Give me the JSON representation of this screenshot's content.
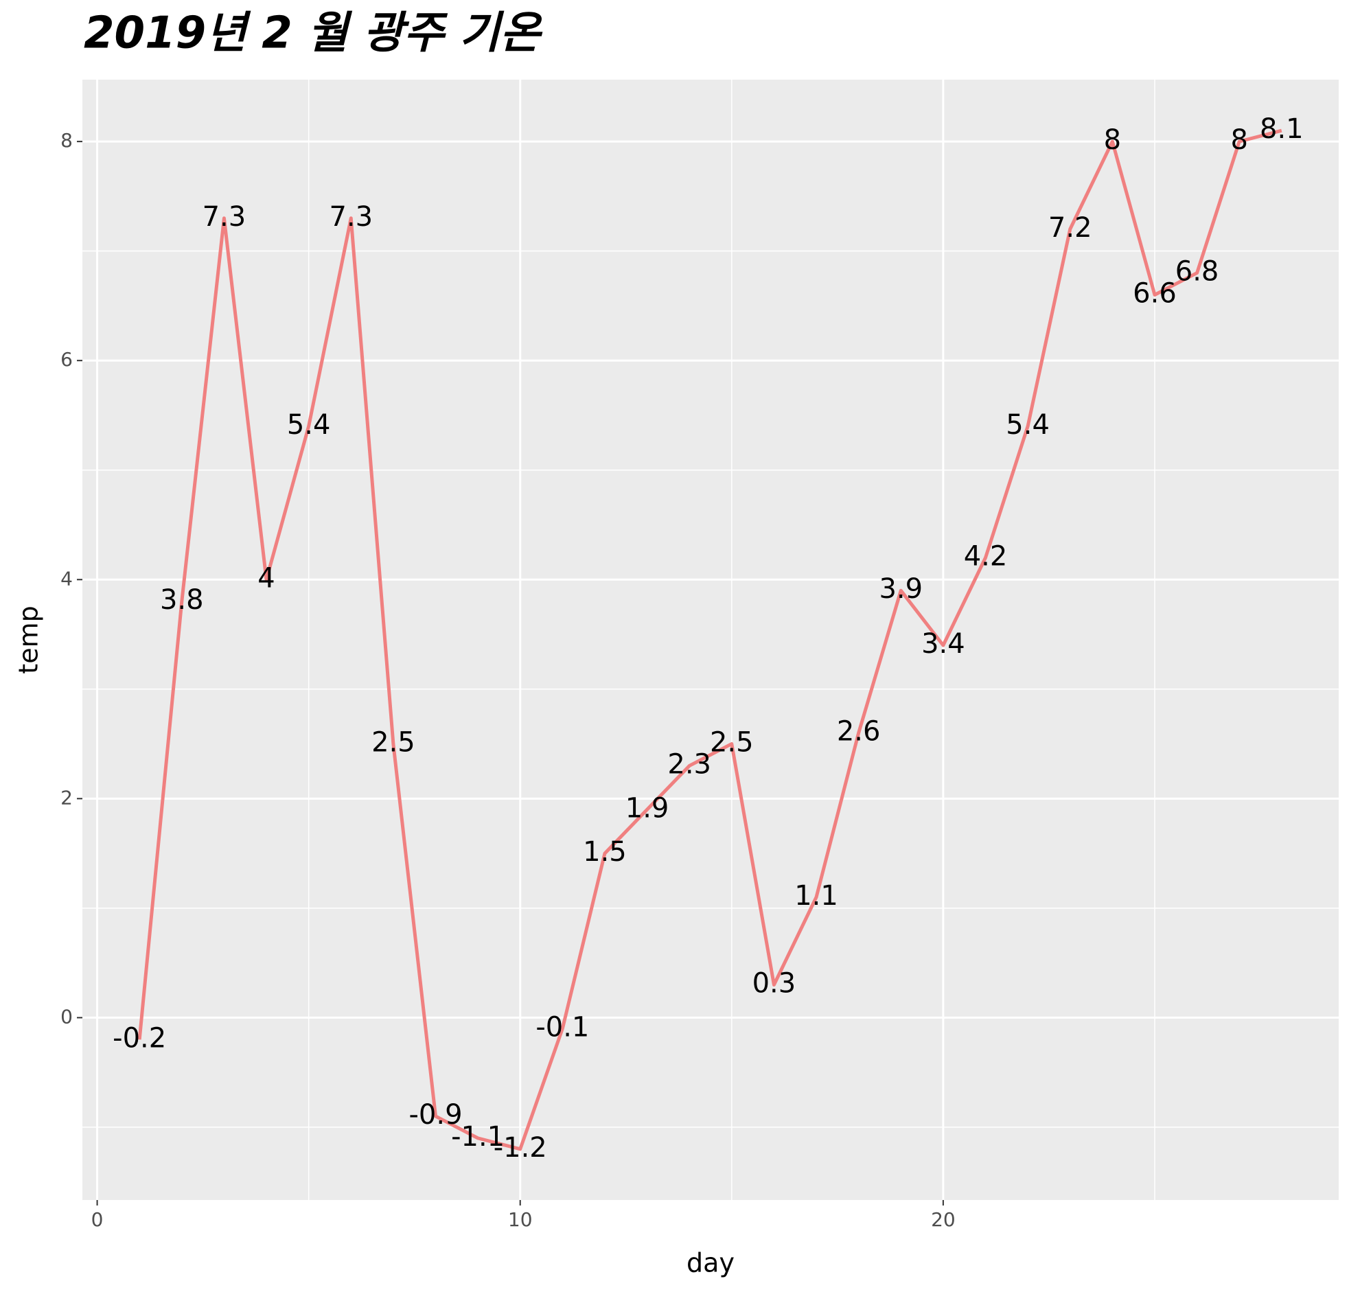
{
  "chart_data": {
    "type": "line",
    "title": "2019년 2 월 광주 기온",
    "x_label": "day",
    "y_label": "temp",
    "x": [
      1,
      2,
      3,
      4,
      5,
      6,
      7,
      8,
      9,
      10,
      11,
      12,
      13,
      14,
      15,
      16,
      17,
      18,
      19,
      20,
      21,
      22,
      23,
      24,
      25,
      26,
      27,
      28
    ],
    "series": [
      {
        "name": "temp",
        "color": "#f08080",
        "values": [
          -0.2,
          3.8,
          7.3,
          4,
          5.4,
          7.3,
          2.5,
          -0.9,
          -1.1,
          -1.2,
          -0.1,
          1.5,
          1.9,
          2.3,
          2.5,
          0.3,
          1.1,
          2.6,
          3.9,
          3.4,
          4.2,
          5.4,
          7.2,
          8,
          6.6,
          6.8,
          8,
          8.1
        ]
      }
    ],
    "data_labels": true,
    "xlim": [
      -0.35,
      29.35
    ],
    "xticks": [
      0,
      10,
      20
    ],
    "ylim": [
      -1.665,
      8.565
    ],
    "yticks": [
      0,
      2,
      4,
      6,
      8
    ],
    "grid": true
  }
}
